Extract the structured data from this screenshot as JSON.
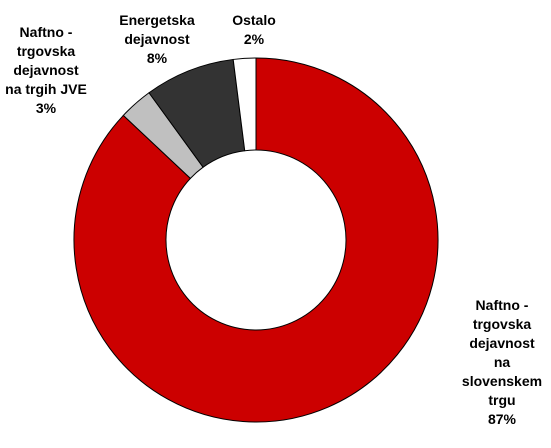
{
  "chart_data": {
    "type": "pie",
    "variant": "donut",
    "start_angle_deg": 0,
    "direction": "clockwise",
    "slices": [
      {
        "label_lines": [
          "Naftno -",
          "trgovska",
          "dejavnost",
          "na",
          "slovenskem",
          "trgu"
        ],
        "value": 87,
        "value_label": "87%",
        "color": "#cc0000"
      },
      {
        "label_lines": [
          "Naftno -",
          "trgovska",
          "dejavnost",
          "na trgih JVE"
        ],
        "value": 3,
        "value_label": "3%",
        "color": "#c0c0c0"
      },
      {
        "label_lines": [
          "Energetska",
          "dejavnost"
        ],
        "value": 8,
        "value_label": "8%",
        "color": "#333333"
      },
      {
        "label_lines": [
          "Ostalo"
        ],
        "value": 2,
        "value_label": "2%",
        "color": "#ffffff"
      }
    ]
  }
}
